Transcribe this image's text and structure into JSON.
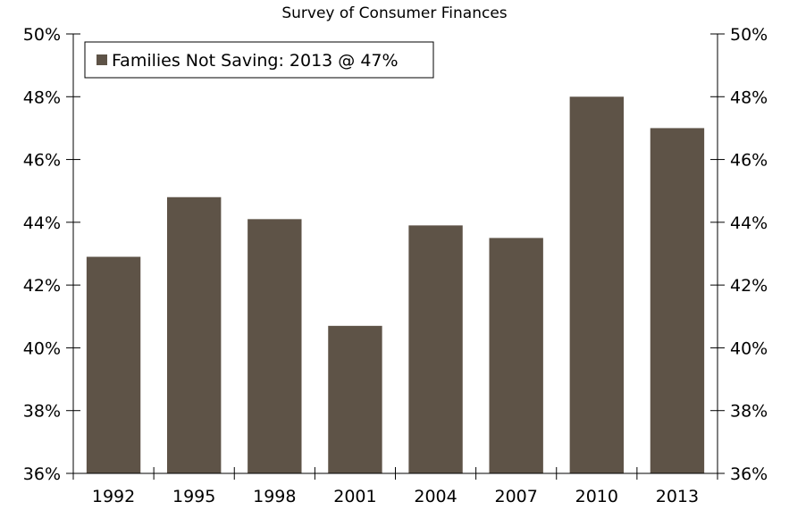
{
  "chart_data": {
    "type": "bar",
    "title": "",
    "subtitle": "Survey of Consumer Finances",
    "categories": [
      "1992",
      "1995",
      "1998",
      "2001",
      "2004",
      "2007",
      "2010",
      "2013"
    ],
    "series": [
      {
        "name": "Families Not Saving: 2013 @ 47%",
        "values": [
          42.9,
          44.8,
          44.1,
          40.7,
          43.9,
          43.5,
          48.0,
          47.0
        ],
        "color": "#5e5347"
      }
    ],
    "ylim": [
      36,
      50
    ],
    "yticks": [
      36,
      38,
      40,
      42,
      44,
      46,
      48,
      50
    ],
    "ytick_labels": [
      "36%",
      "38%",
      "40%",
      "42%",
      "44%",
      "46%",
      "48%",
      "50%"
    ],
    "y_axis_both_sides": true,
    "grid": false,
    "legend_position": "top-left",
    "xlabel": "",
    "ylabel": ""
  }
}
